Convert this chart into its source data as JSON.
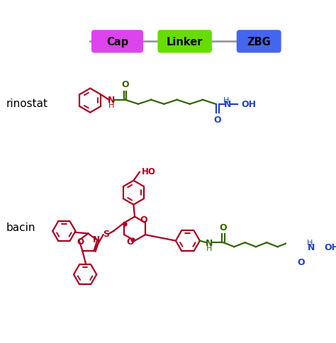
{
  "fig_width": 4.74,
  "fig_height": 4.85,
  "dpi": 100,
  "bg_color": "#ffffff",
  "cap_label": "Cap",
  "linker_label": "Linker",
  "zbg_label": "ZBG",
  "drug1_label": "rinostat",
  "drug2_label": "bacin",
  "red": "#aa0022",
  "green": "#336600",
  "blue": "#2244bb",
  "cap_fc": "#dd44ee",
  "linker_fc": "#66dd00",
  "zbg_fc": "#4466ee",
  "bar_line_color": "#999999"
}
